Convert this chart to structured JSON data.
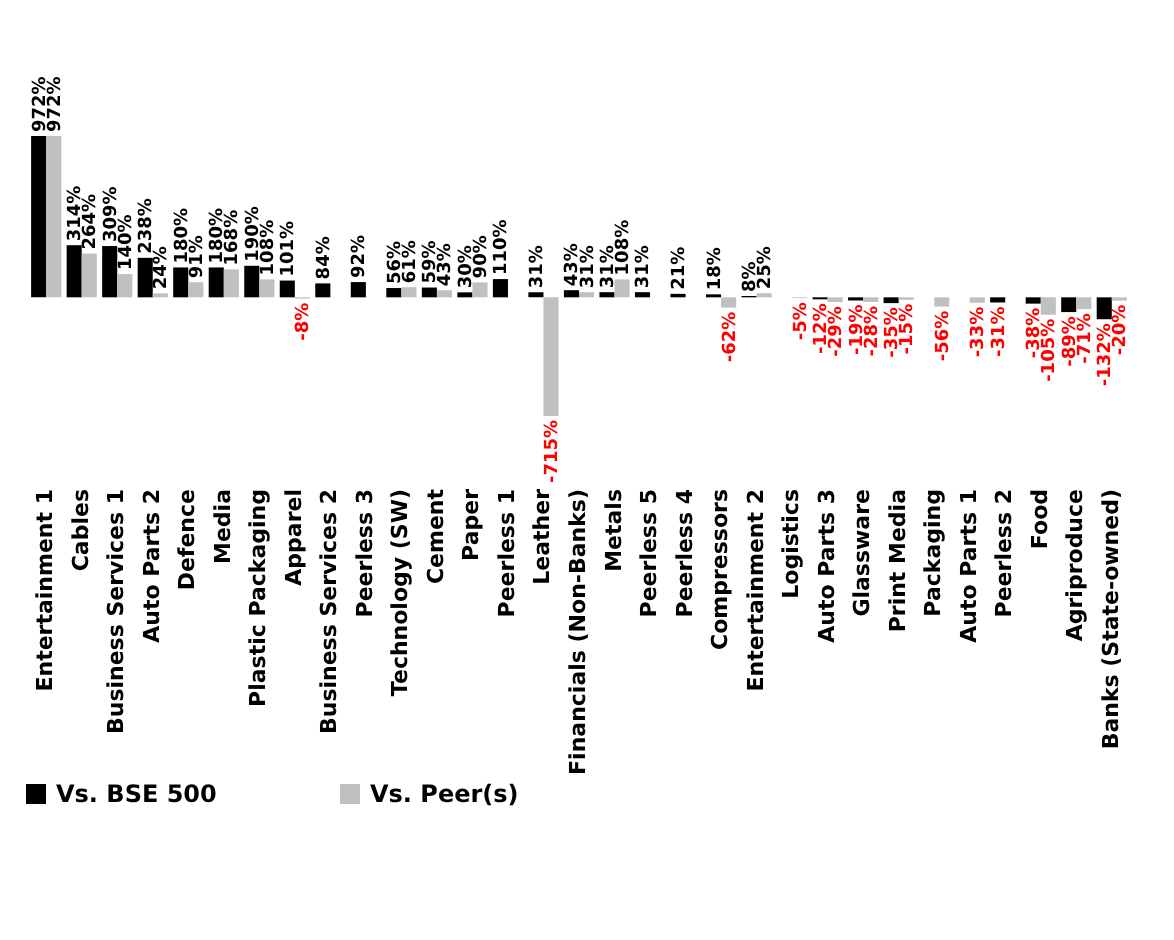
{
  "chart_data": {
    "type": "bar",
    "categories": [
      "Entertainment 1",
      "Cables",
      "Business Services 1",
      "Auto Parts 2",
      "Defence",
      "Media",
      "Plastic Packaging",
      "Apparel",
      "Business Services 2",
      "Peerless 3",
      "Technology (SW)",
      "Cement",
      "Paper",
      "Peerless 1",
      "Leather",
      "Financials (Non-Banks)",
      "Metals",
      "Peerless 5",
      "Peerless 4",
      "Compressors",
      "Entertainment 2",
      "Logistics",
      "Auto Parts 3",
      "Glassware",
      "Print Media",
      "Packaging",
      "Auto Parts 1",
      "Peerless 2",
      "Food",
      "Agriproduce",
      "Banks (State-owned)"
    ],
    "series": [
      {
        "name": "Vs. BSE 500",
        "color": "#000000",
        "values": [
          972,
          314,
          309,
          238,
          180,
          180,
          190,
          101,
          84,
          92,
          56,
          59,
          30,
          110,
          31,
          43,
          31,
          31,
          21,
          18,
          8,
          null,
          -12,
          -19,
          -35,
          null,
          null,
          -31,
          -38,
          -89,
          -132
        ],
        "value_labels": [
          "972%",
          "314%",
          "309%",
          "238%",
          "180%",
          "180%",
          "190%",
          "101%",
          "84%",
          "92%",
          "56%",
          "59%",
          "30%",
          "110%",
          "31%",
          "43%",
          "31%",
          "31%",
          "21%",
          "18%",
          "8%",
          null,
          "-12%",
          "-19%",
          "-35%",
          null,
          null,
          "-31%",
          "-38%",
          "-89%",
          "-132%"
        ]
      },
      {
        "name": "Vs. Peer(s)",
        "color": "#c0c0c0",
        "values": [
          972,
          264,
          140,
          24,
          91,
          168,
          108,
          -8,
          null,
          null,
          61,
          43,
          90,
          null,
          -715,
          31,
          108,
          null,
          null,
          -62,
          25,
          -5,
          -29,
          -28,
          -15,
          -56,
          -33,
          null,
          -105,
          -71,
          -20
        ],
        "value_labels": [
          "972%",
          "264%",
          "140%",
          "24%",
          "91%",
          "168%",
          "108%",
          "-8%",
          null,
          null,
          "61%",
          "43%",
          "90%",
          null,
          "-715%",
          "31%",
          "108%",
          null,
          null,
          "-62%",
          "25%",
          "-5%",
          "-29%",
          "-28%",
          "-15%",
          "-56%",
          "-33%",
          null,
          "-105%",
          "-71%",
          "-20%"
        ]
      }
    ],
    "legend": "bottom",
    "tick_labels": "x"
  }
}
